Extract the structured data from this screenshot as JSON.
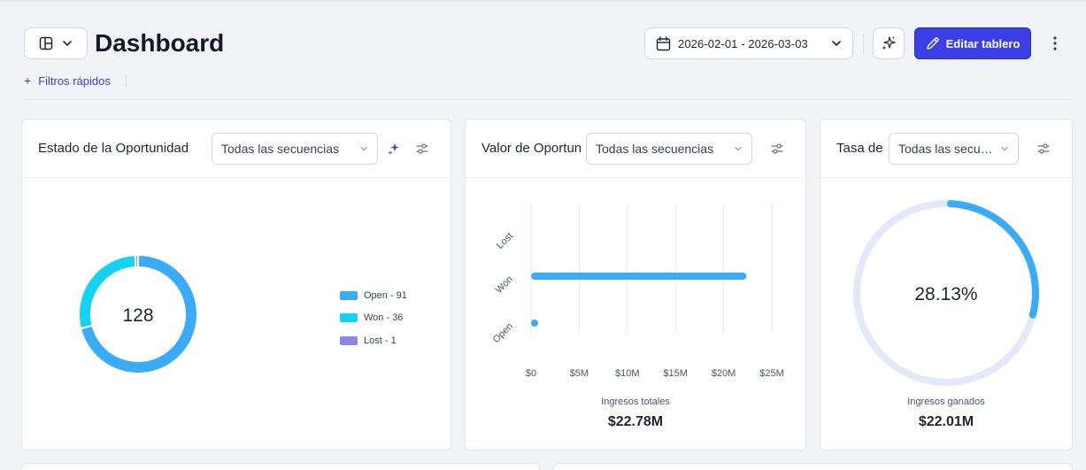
{
  "header": {
    "title": "Dashboard",
    "date_range": "2026-02-01 - 2026-03-03",
    "edit_label": "Editar tablero",
    "quick_filters_label": "Filtros rápidos"
  },
  "cards": {
    "status": {
      "title": "Estado de la Oportunidad",
      "select_value": "Todas las secuencias",
      "total": "128",
      "legend": [
        {
          "label": "Open - 91",
          "color": "#3aabf7"
        },
        {
          "label": "Won - 36",
          "color": "#14d3f0"
        },
        {
          "label": "Lost - 1",
          "color": "#8b86ec"
        }
      ]
    },
    "value": {
      "title": "Valor de Oportunidad",
      "select_value": "Todas las secuencias",
      "kpi_label": "Ingresos totales",
      "kpi_value": "$22.78M"
    },
    "rate": {
      "title": "Tasa de",
      "select_value": "Todas las secuencias",
      "percent_text": "28.13%",
      "percent": 28.13,
      "kpi_label": "Ingresos ganados",
      "kpi_value": "$22.01M"
    }
  },
  "chart_data": [
    {
      "type": "pie",
      "title": "Estado de la Oportunidad",
      "categories": [
        "Open",
        "Won",
        "Lost"
      ],
      "values": [
        91,
        36,
        1
      ],
      "colors": [
        "#3aabf7",
        "#14d3f0",
        "#8b86ec"
      ],
      "center_label": "128",
      "legend_placement": "right"
    },
    {
      "type": "bar",
      "orientation": "horizontal",
      "title": "Valor de Oportunidad",
      "categories": [
        "Lost",
        "Won",
        "Open"
      ],
      "values": [
        0,
        22.01,
        0.77
      ],
      "unit": "M",
      "x_ticks": [
        "$0",
        "$5M",
        "$10M",
        "$15M",
        "$20M",
        "$25M"
      ],
      "xlim": [
        0,
        25
      ],
      "grid": true,
      "color": "#3aabf7"
    }
  ],
  "colors": {
    "accent": "#3b3fe6",
    "series_blue": "#3aabf7",
    "track": "#e4e9f9"
  },
  "icons": [
    "layout-icon",
    "chevron-down-icon",
    "calendar-icon",
    "sparkles-icon",
    "pencil-icon",
    "more-vertical-icon",
    "filter-settings-icon",
    "plus-icon"
  ]
}
